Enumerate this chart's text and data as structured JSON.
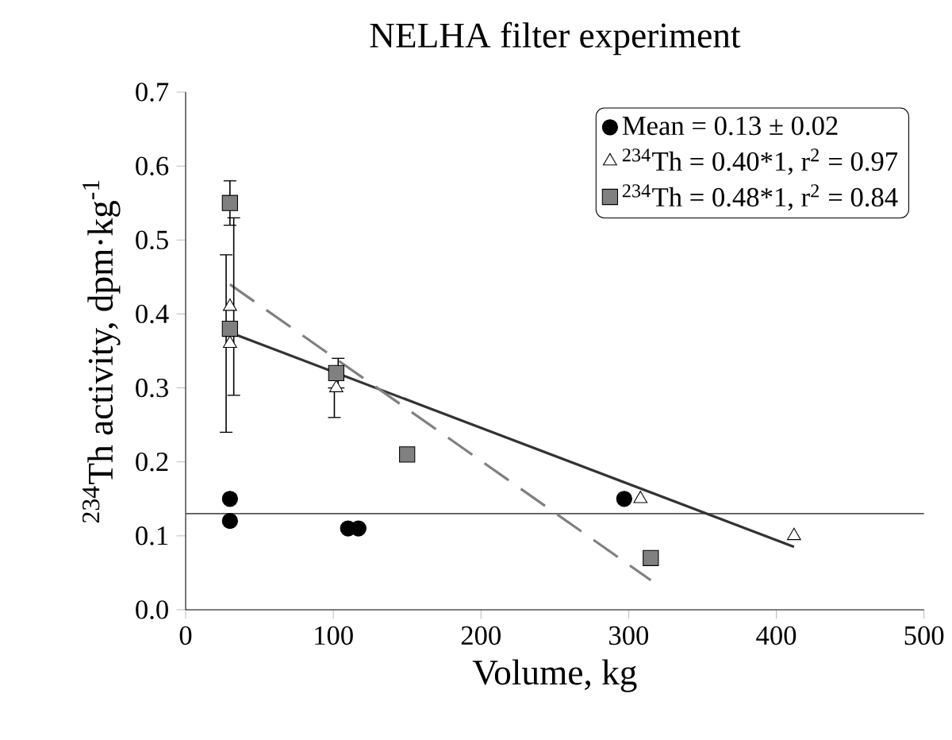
{
  "chart_data": {
    "type": "scatter",
    "title": "NELHA filter experiment",
    "xlabel": "Volume, kg",
    "ylabel": "$^{234}$Th activity, dpm·kg$^{-1}$",
    "xlim": [
      0,
      500
    ],
    "xticks": [
      0,
      100,
      200,
      300,
      400,
      500
    ],
    "ylim": [
      0,
      0.7
    ],
    "yticks": [
      {
        "value": 0,
        "label": "0.0"
      },
      {
        "value": 0.1,
        "label": "0.1"
      },
      {
        "value": 0.2,
        "label": "0.2"
      },
      {
        "value": 0.3,
        "label": "0.3"
      },
      {
        "value": 0.4,
        "label": "0.4"
      },
      {
        "value": 0.5,
        "label": "0.5"
      },
      {
        "value": 0.6,
        "label": "0.6"
      },
      {
        "value": 0.7,
        "label": "0.7"
      }
    ],
    "legend": "top right",
    "grid": false,
    "ref_lines": [
      {
        "axis": "y",
        "value": 0.13,
        "color": "#555555",
        "line_style": "solid"
      }
    ],
    "series": [
      {
        "name": "Mean = 0.13 ± 0.02",
        "type": "scatter",
        "marker": "circle",
        "color": "#000000",
        "x": [
          30,
          30,
          110,
          117,
          297
        ],
        "values": [
          0.15,
          0.12,
          0.11,
          0.11,
          0.15
        ]
      },
      {
        "name": "$^{234}$Th = 0.40*1, r$^{2}$ = 0.97",
        "type": "scatter",
        "marker": "triangle",
        "color": "#ffffff",
        "x": [
          30,
          30,
          102,
          308,
          412
        ],
        "values": [
          0.41,
          0.36,
          0.3,
          0.15,
          0.1
        ],
        "errors": [
          null,
          [
            0.24,
            0.48
          ],
          [
            0.26,
            0.3
          ],
          null,
          null
        ]
      },
      {
        "name": "$^{234}$Th = 0.48*1, r$^{2}$ = 0.84",
        "type": "scatter",
        "marker": "square",
        "color": "#808080",
        "x": [
          30,
          30,
          102,
          150,
          315
        ],
        "values": [
          0.55,
          0.38,
          0.32,
          0.21,
          0.07
        ],
        "errors": [
          [
            0.52,
            0.58
          ],
          [
            0.29,
            0.53
          ],
          [
            0.3,
            0.34
          ],
          null,
          null
        ]
      },
      {
        "type": "line",
        "line_style": "solid",
        "marker": "none",
        "color": "#333333",
        "x": [
          30,
          412
        ],
        "values": [
          0.375,
          0.085
        ]
      },
      {
        "type": "line",
        "line_style": "dashed",
        "marker": "none",
        "color": "#808080",
        "x": [
          30,
          315
        ],
        "values": [
          0.44,
          0.04
        ]
      }
    ]
  }
}
